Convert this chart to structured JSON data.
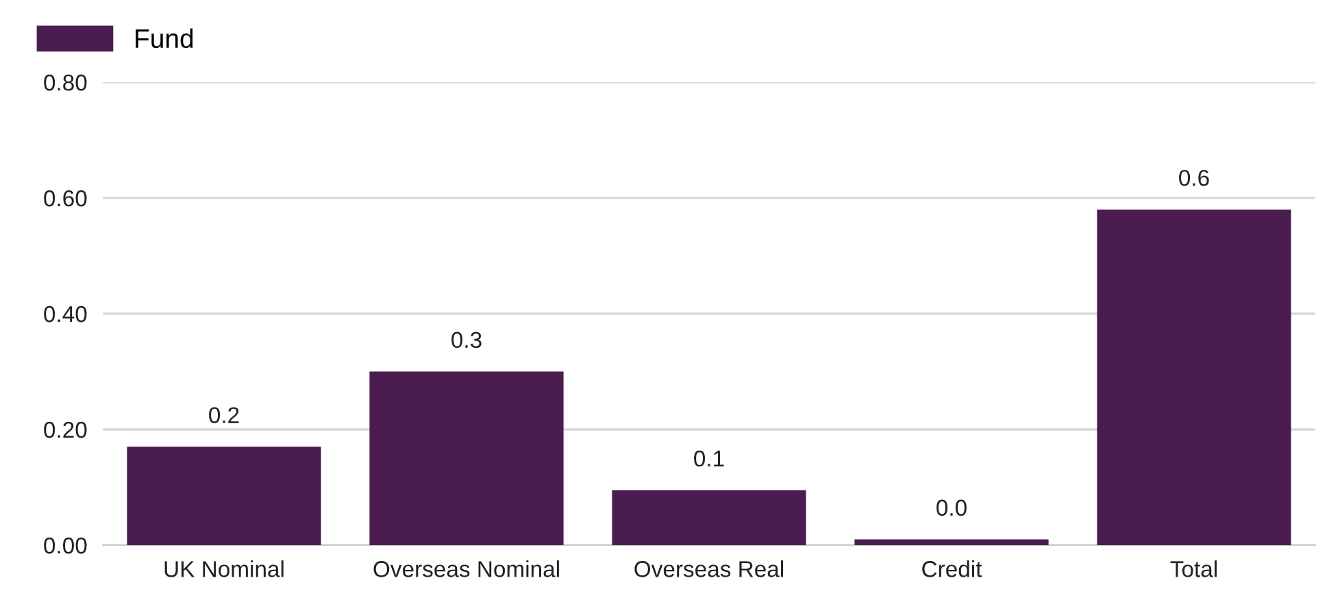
{
  "chart_data": {
    "type": "bar",
    "categories": [
      "UK Nominal",
      "Overseas Nominal",
      "Overseas Real",
      "Credit",
      "Total"
    ],
    "series": [
      {
        "name": "Fund",
        "color": "#4b1c4f",
        "values": [
          0.17,
          0.3,
          0.095,
          0.01,
          0.58
        ],
        "value_labels": [
          "0.2",
          "0.3",
          "0.1",
          "0.0",
          "0.6"
        ]
      }
    ],
    "ylim": [
      0,
      0.8
    ],
    "yticks": [
      {
        "value": 0,
        "label": "0.00"
      },
      {
        "value": 0.2,
        "label": "0.20"
      },
      {
        "value": 0.4,
        "label": "0.40"
      },
      {
        "value": 0.6,
        "label": "0.60"
      },
      {
        "value": 0.8,
        "label": "0.80"
      }
    ],
    "grid": "y",
    "legend": "top left"
  }
}
